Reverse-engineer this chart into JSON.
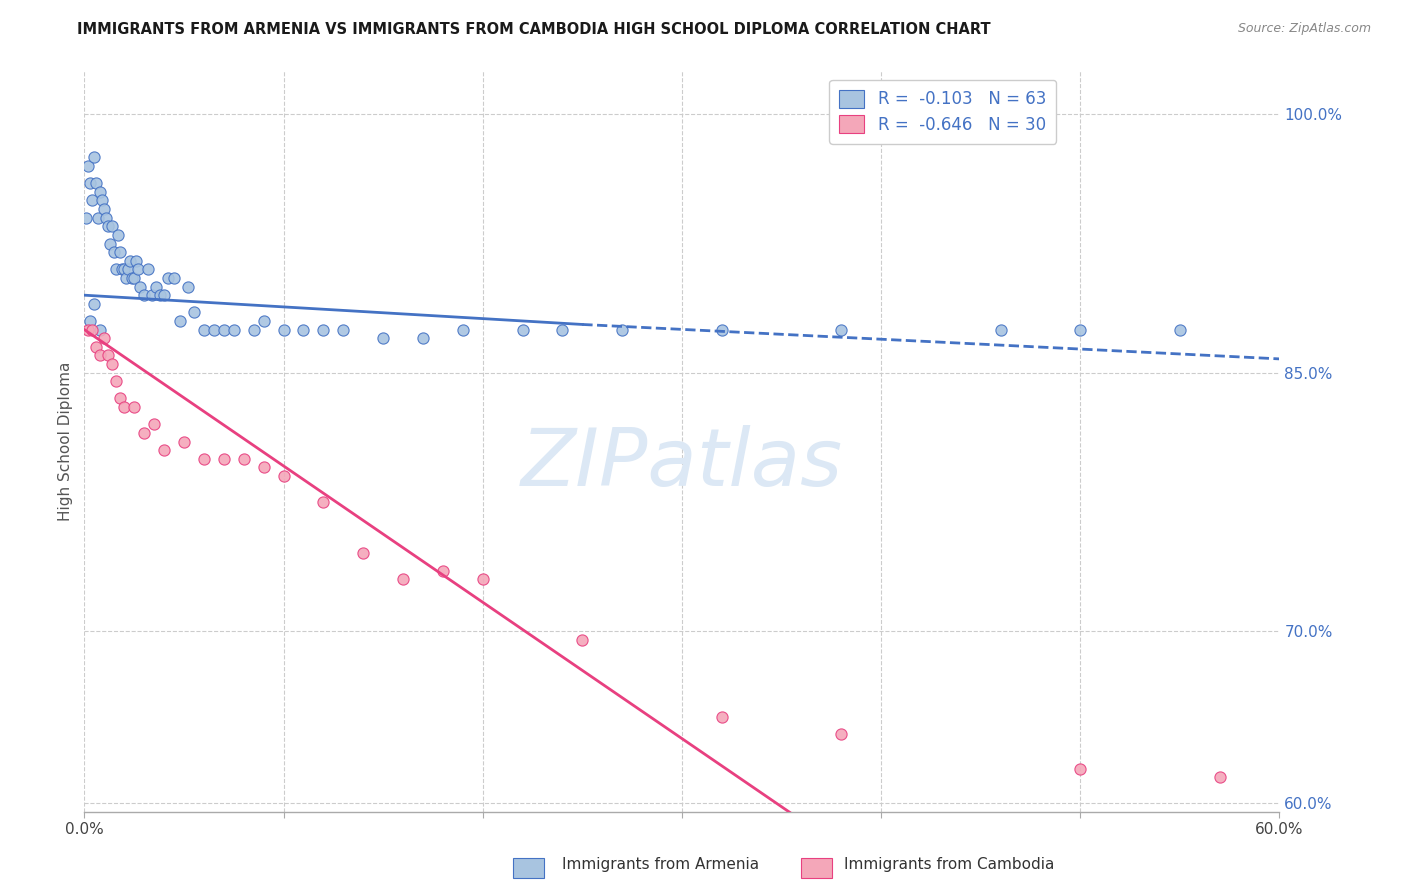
{
  "title": "IMMIGRANTS FROM ARMENIA VS IMMIGRANTS FROM CAMBODIA HIGH SCHOOL DIPLOMA CORRELATION CHART",
  "source": "Source: ZipAtlas.com",
  "ylabel": "High School Diploma",
  "watermark": "ZIPatlas",
  "xmin": 0.0,
  "xmax": 0.6,
  "ymin": 0.595,
  "ymax": 1.025,
  "right_yticks": [
    0.6,
    0.7,
    0.85,
    1.0
  ],
  "right_ytick_labels": [
    "60.0%",
    "70.0%",
    "85.0%",
    "100.0%"
  ],
  "xticks": [
    0.0,
    0.1,
    0.2,
    0.3,
    0.4,
    0.5,
    0.6
  ],
  "xtick_labels": [
    "0.0%",
    "",
    "",
    "",
    "",
    "",
    "60.0%"
  ],
  "armenia_R": -0.103,
  "armenia_N": 63,
  "cambodia_R": -0.646,
  "cambodia_N": 30,
  "armenia_fill_color": "#a8c4e0",
  "cambodia_fill_color": "#f4a7b9",
  "armenia_edge_color": "#4472c4",
  "cambodia_edge_color": "#e84080",
  "armenia_line_color": "#4472c4",
  "cambodia_line_color": "#e84080",
  "legend_text_color": "#4472c4",
  "right_axis_color": "#4472c4",
  "armenia_scatter_x": [
    0.001,
    0.002,
    0.003,
    0.004,
    0.005,
    0.006,
    0.007,
    0.008,
    0.009,
    0.01,
    0.011,
    0.012,
    0.013,
    0.014,
    0.015,
    0.016,
    0.017,
    0.018,
    0.019,
    0.02,
    0.021,
    0.022,
    0.023,
    0.024,
    0.025,
    0.026,
    0.027,
    0.028,
    0.03,
    0.032,
    0.034,
    0.036,
    0.038,
    0.04,
    0.042,
    0.045,
    0.048,
    0.052,
    0.055,
    0.06,
    0.065,
    0.07,
    0.075,
    0.085,
    0.09,
    0.1,
    0.11,
    0.12,
    0.13,
    0.15,
    0.17,
    0.19,
    0.22,
    0.24,
    0.27,
    0.32,
    0.38,
    0.46,
    0.5,
    0.55,
    0.003,
    0.005,
    0.008
  ],
  "armenia_scatter_y": [
    0.94,
    0.97,
    0.96,
    0.95,
    0.975,
    0.96,
    0.94,
    0.955,
    0.95,
    0.945,
    0.94,
    0.935,
    0.925,
    0.935,
    0.92,
    0.91,
    0.93,
    0.92,
    0.91,
    0.91,
    0.905,
    0.91,
    0.915,
    0.905,
    0.905,
    0.915,
    0.91,
    0.9,
    0.895,
    0.91,
    0.895,
    0.9,
    0.895,
    0.895,
    0.905,
    0.905,
    0.88,
    0.9,
    0.885,
    0.875,
    0.875,
    0.875,
    0.875,
    0.875,
    0.88,
    0.875,
    0.875,
    0.875,
    0.875,
    0.87,
    0.87,
    0.875,
    0.875,
    0.875,
    0.875,
    0.875,
    0.875,
    0.875,
    0.875,
    0.875,
    0.88,
    0.89,
    0.875
  ],
  "cambodia_scatter_x": [
    0.002,
    0.004,
    0.006,
    0.008,
    0.01,
    0.012,
    0.014,
    0.016,
    0.018,
    0.02,
    0.025,
    0.03,
    0.035,
    0.04,
    0.05,
    0.06,
    0.07,
    0.08,
    0.09,
    0.1,
    0.12,
    0.14,
    0.16,
    0.18,
    0.2,
    0.25,
    0.32,
    0.38,
    0.5,
    0.57
  ],
  "cambodia_scatter_y": [
    0.875,
    0.875,
    0.865,
    0.86,
    0.87,
    0.86,
    0.855,
    0.845,
    0.835,
    0.83,
    0.83,
    0.815,
    0.82,
    0.805,
    0.81,
    0.8,
    0.8,
    0.8,
    0.795,
    0.79,
    0.775,
    0.745,
    0.73,
    0.735,
    0.73,
    0.695,
    0.65,
    0.64,
    0.62,
    0.615
  ],
  "armenia_trendline_solid": [
    [
      0.0,
      0.895
    ],
    [
      0.25,
      0.878
    ]
  ],
  "armenia_trendline_dashed": [
    [
      0.25,
      0.878
    ],
    [
      0.6,
      0.858
    ]
  ],
  "cambodia_trendline": [
    [
      0.0,
      0.875
    ],
    [
      0.6,
      0.4
    ]
  ],
  "background_color": "#ffffff",
  "grid_color": "#cccccc",
  "grid_horiz": [
    0.6,
    0.7,
    0.85,
    1.0
  ],
  "grid_vert": [
    0.0,
    0.1,
    0.2,
    0.3,
    0.4,
    0.5
  ]
}
